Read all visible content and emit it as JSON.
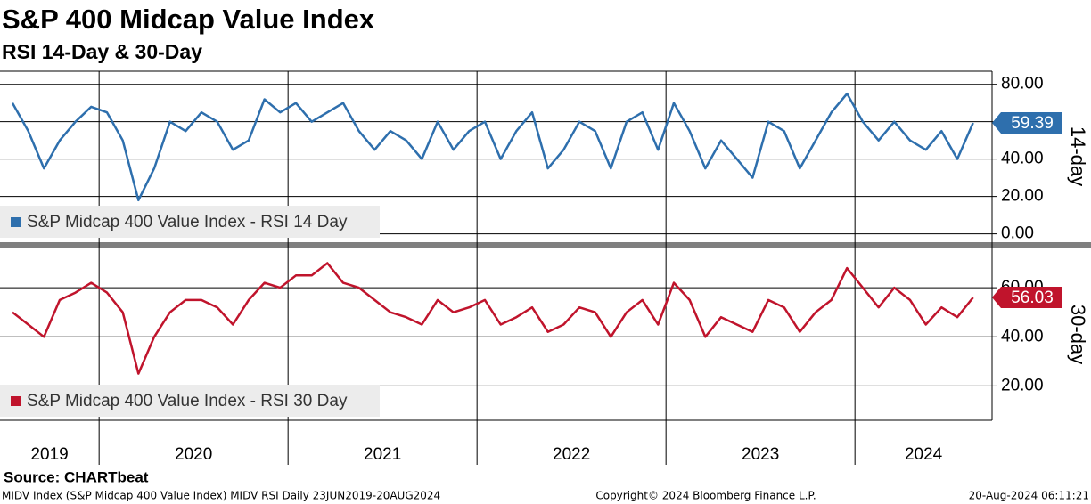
{
  "header": {
    "title": "S&P 400 Midcap Value Index",
    "subtitle": "RSI 14-Day & 30-Day"
  },
  "chart_data": [
    {
      "type": "line",
      "axis_label": "14-day",
      "categories": [
        "2019",
        null,
        null,
        null,
        null,
        null,
        "2020",
        null,
        null,
        null,
        null,
        null,
        null,
        null,
        null,
        null,
        null,
        null,
        "2021",
        null,
        null,
        null,
        null,
        null,
        null,
        null,
        null,
        null,
        null,
        null,
        "2022",
        null,
        null,
        null,
        null,
        null,
        null,
        null,
        null,
        null,
        null,
        null,
        "2023",
        null,
        null,
        null,
        null,
        null,
        null,
        null,
        null,
        null,
        null,
        null,
        "2024",
        null,
        null,
        null,
        null,
        null,
        null,
        null
      ],
      "series": [
        {
          "name": "S&P Midcap 400 Value Index - RSI 14 Day",
          "color": "#2e6fad",
          "values": [
            70,
            55,
            35,
            50,
            60,
            68,
            65,
            50,
            18,
            35,
            60,
            55,
            65,
            60,
            45,
            50,
            72,
            65,
            70,
            60,
            65,
            70,
            55,
            45,
            55,
            50,
            40,
            60,
            45,
            55,
            60,
            40,
            55,
            65,
            35,
            45,
            60,
            55,
            35,
            60,
            65,
            45,
            70,
            55,
            35,
            50,
            40,
            30,
            60,
            55,
            35,
            50,
            65,
            75,
            60,
            50,
            60,
            50,
            45,
            55,
            40,
            59.39
          ]
        }
      ],
      "ylim": [
        -4,
        87
      ],
      "yticks": [
        {
          "value": 0,
          "label": "0.00"
        },
        {
          "value": 20,
          "label": "20.00"
        },
        {
          "value": 40,
          "label": "40.00"
        },
        {
          "value": 60,
          "label": "60.00"
        },
        {
          "value": 80,
          "label": "80.00"
        }
      ],
      "grid": true,
      "legend": "bottom-left"
    },
    {
      "type": "line",
      "axis_label": "30-day",
      "series": [
        {
          "name": "S&P Midcap 400 Value Index - RSI 30 Day",
          "color": "#c0142c",
          "values": [
            50,
            45,
            40,
            55,
            58,
            62,
            58,
            50,
            25,
            40,
            50,
            55,
            55,
            52,
            45,
            55,
            62,
            60,
            65,
            65,
            70,
            62,
            60,
            55,
            50,
            48,
            45,
            55,
            50,
            52,
            55,
            45,
            48,
            52,
            42,
            45,
            52,
            50,
            40,
            50,
            55,
            45,
            62,
            55,
            40,
            48,
            45,
            42,
            55,
            52,
            42,
            50,
            55,
            68,
            60,
            52,
            60,
            55,
            45,
            52,
            48,
            56.03
          ]
        }
      ],
      "ylim": [
        6,
        76
      ],
      "yticks": [
        {
          "value": 20,
          "label": "20.00"
        },
        {
          "value": 40,
          "label": "40.00"
        },
        {
          "value": 60,
          "label": "60.00"
        }
      ],
      "grid": true,
      "legend": "bottom-left"
    }
  ],
  "source": "Source: CHARTbeat",
  "footer": {
    "left": "MIDV Index (S&P Midcap 400 Value Index) MIDV RSI  Daily 23JUN2019-20AUG2024",
    "center": "Copyright© 2024 Bloomberg Finance L.P.",
    "right": "20-Aug-2024 06:11:21"
  }
}
